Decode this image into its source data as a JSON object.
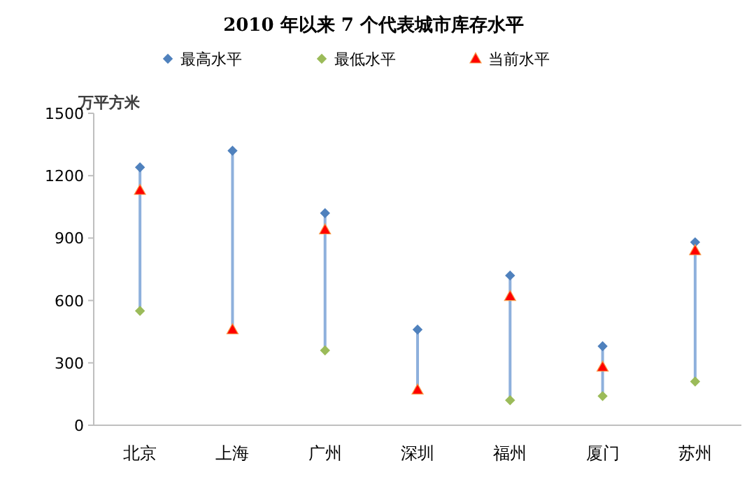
{
  "chart_data": {
    "type": "scatter",
    "title": "2010 年以来 7 个代表城市库存水平",
    "ylabel": "万平方米",
    "categories": [
      "北京",
      "上海",
      "广州",
      "深圳",
      "福州",
      "厦门",
      "苏州"
    ],
    "ylim": [
      0,
      1500
    ],
    "yticks": [
      0,
      300,
      600,
      900,
      1200,
      1500
    ],
    "legend": "top",
    "grid": false,
    "series": [
      {
        "type": "bar",
        "color": "#8eb0dc",
        "base": [
          550,
          460,
          360,
          170,
          120,
          140,
          210
        ],
        "values": [
          690,
          860,
          660,
          290,
          600,
          240,
          670
        ]
      },
      {
        "name": "最高水平",
        "color": "#4f81bd",
        "marker": "diamond",
        "values": [
          1240,
          1320,
          1020,
          460,
          720,
          380,
          880
        ]
      },
      {
        "name": "最低水平",
        "color": "#9bbb59",
        "marker": "diamond",
        "values": [
          550,
          null,
          360,
          null,
          120,
          140,
          210
        ]
      },
      {
        "name": "当前水平",
        "color": "#ff0000",
        "marker": "triangle",
        "values": [
          1130,
          460,
          940,
          170,
          620,
          280,
          840
        ]
      }
    ]
  }
}
